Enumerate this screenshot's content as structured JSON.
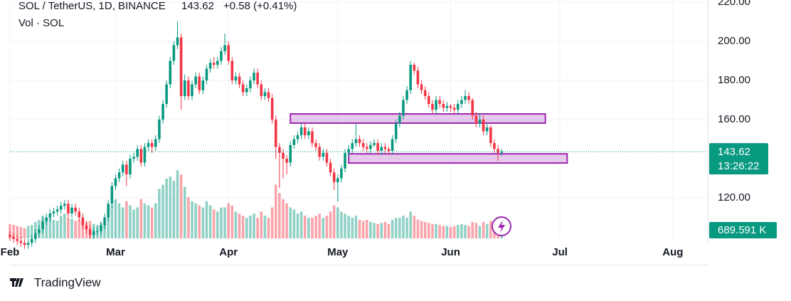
{
  "chart_data": {
    "type": "candlestick",
    "title": "SOL / TetherUS, 1D, BINANCE",
    "last_price": 143.62,
    "change_label": "+0.58 (+0.41%)",
    "countdown": "13:26:22",
    "volume_title": "Vol · SOL",
    "volume_label": "689.591 K",
    "up_color": "#089981",
    "down_color": "#f23645",
    "zone_color": "#9c27b0",
    "xlim": [
      0,
      191.6
    ],
    "xticks": [
      {
        "value": 0,
        "label": "Feb"
      },
      {
        "value": 29,
        "label": "Mar"
      },
      {
        "value": 60,
        "label": "Apr"
      },
      {
        "value": 90,
        "label": "May"
      },
      {
        "value": 121,
        "label": "Jun"
      },
      {
        "value": 151,
        "label": "Jul"
      },
      {
        "value": 182,
        "label": "Aug"
      }
    ],
    "ylim": [
      99.3,
      221.1
    ],
    "yticks": [
      {
        "value": 120,
        "label": "120.00"
      },
      {
        "value": 160,
        "label": "160.00"
      },
      {
        "value": 180,
        "label": "180.00"
      },
      {
        "value": 200,
        "label": "200.00"
      },
      {
        "value": 220,
        "label": "220.00"
      }
    ],
    "volume_ylim": [
      0,
      3450
    ],
    "zones": [
      {
        "x": [
          77,
          147
        ],
        "y": [
          158.2,
          162.9
        ]
      },
      {
        "x": [
          93,
          153
        ],
        "y": [
          137.8,
          142.5
        ]
      }
    ],
    "x": [
      0,
      1,
      2,
      3,
      4,
      5,
      6,
      7,
      8,
      9,
      10,
      11,
      12,
      13,
      14,
      15,
      16,
      17,
      18,
      19,
      20,
      21,
      22,
      23,
      24,
      25,
      26,
      27,
      28,
      29,
      30,
      31,
      32,
      33,
      34,
      35,
      36,
      37,
      38,
      39,
      40,
      41,
      42,
      43,
      44,
      45,
      46,
      47,
      48,
      49,
      50,
      51,
      52,
      53,
      54,
      55,
      56,
      57,
      58,
      59,
      60,
      61,
      62,
      63,
      64,
      65,
      66,
      67,
      68,
      69,
      70,
      71,
      72,
      73,
      74,
      75,
      76,
      77,
      78,
      79,
      80,
      81,
      82,
      83,
      84,
      85,
      86,
      87,
      88,
      89,
      90,
      91,
      92,
      93,
      94,
      95,
      96,
      97,
      98,
      99,
      100,
      101,
      102,
      103,
      104,
      105,
      106,
      107,
      108,
      109,
      110,
      111,
      112,
      113,
      114,
      115,
      116,
      117,
      118,
      119,
      120,
      121,
      122,
      123,
      124,
      125,
      126,
      127,
      128,
      129,
      130,
      131,
      132,
      133,
      134,
      135
    ],
    "ohlc": [
      [
        101,
        103,
        98,
        100
      ],
      [
        100,
        102,
        97,
        99
      ],
      [
        99,
        101,
        96,
        98
      ],
      [
        98,
        100,
        95,
        97
      ],
      [
        97,
        99,
        94,
        96
      ],
      [
        96,
        99,
        94,
        97
      ],
      [
        97,
        101,
        95,
        99
      ],
      [
        99,
        104,
        97,
        102
      ],
      [
        102,
        106,
        100,
        104
      ],
      [
        104,
        110,
        102,
        108
      ],
      [
        108,
        112,
        106,
        110
      ],
      [
        110,
        114,
        108,
        112
      ],
      [
        112,
        115,
        110,
        113
      ],
      [
        113,
        116,
        111,
        114
      ],
      [
        114,
        118,
        112,
        116
      ],
      [
        116,
        119,
        114,
        117
      ],
      [
        117,
        119,
        110,
        112
      ],
      [
        112,
        117,
        110,
        115
      ],
      [
        115,
        117,
        111,
        113
      ],
      [
        113,
        115,
        108,
        110
      ],
      [
        110,
        112,
        104,
        106
      ],
      [
        106,
        108,
        102,
        104
      ],
      [
        104,
        106,
        99,
        101
      ],
      [
        101,
        105,
        99,
        103
      ],
      [
        103,
        105,
        101,
        103
      ],
      [
        103,
        108,
        101,
        106
      ],
      [
        106,
        112,
        104,
        110
      ],
      [
        110,
        119,
        108,
        117
      ],
      [
        117,
        128,
        115,
        126
      ],
      [
        126,
        132,
        124,
        130
      ],
      [
        130,
        135,
        128,
        133
      ],
      [
        133,
        139,
        131,
        137
      ],
      [
        137,
        139,
        126,
        132
      ],
      [
        132,
        142,
        130,
        140
      ],
      [
        140,
        143,
        138,
        141
      ],
      [
        141,
        147,
        139,
        145
      ],
      [
        145,
        147,
        136,
        138
      ],
      [
        138,
        148,
        136,
        146
      ],
      [
        146,
        150,
        144,
        148
      ],
      [
        148,
        150,
        143,
        146
      ],
      [
        146,
        152,
        144,
        150
      ],
      [
        150,
        162,
        148,
        160
      ],
      [
        160,
        170,
        158,
        168
      ],
      [
        168,
        180,
        166,
        178
      ],
      [
        178,
        192,
        176,
        190
      ],
      [
        190,
        200,
        188,
        198
      ],
      [
        198,
        210,
        196,
        202
      ],
      [
        202,
        204,
        165,
        172
      ],
      [
        172,
        183,
        170,
        180
      ],
      [
        180,
        182,
        170,
        172
      ],
      [
        172,
        180,
        170,
        178
      ],
      [
        178,
        184,
        176,
        182
      ],
      [
        182,
        184,
        173,
        175
      ],
      [
        175,
        182,
        173,
        180
      ],
      [
        180,
        188,
        178,
        186
      ],
      [
        186,
        191,
        184,
        189
      ],
      [
        189,
        192,
        186,
        188
      ],
      [
        188,
        192,
        186,
        190
      ],
      [
        190,
        197,
        188,
        195
      ],
      [
        195,
        204,
        193,
        198
      ],
      [
        198,
        200,
        188,
        190
      ],
      [
        190,
        192,
        178,
        180
      ],
      [
        180,
        184,
        178,
        182
      ],
      [
        182,
        184,
        176,
        178
      ],
      [
        178,
        180,
        172,
        174
      ],
      [
        174,
        178,
        172,
        176
      ],
      [
        176,
        182,
        174,
        180
      ],
      [
        180,
        186,
        178,
        184
      ],
      [
        184,
        186,
        176,
        178
      ],
      [
        178,
        180,
        170,
        172
      ],
      [
        172,
        176,
        170,
        174
      ],
      [
        174,
        176,
        169,
        171
      ],
      [
        171,
        173,
        158,
        160
      ],
      [
        160,
        162,
        140,
        146
      ],
      [
        146,
        148,
        125,
        143
      ],
      [
        143,
        145,
        130,
        140
      ],
      [
        140,
        142,
        132,
        138
      ],
      [
        138,
        149,
        136,
        147
      ],
      [
        147,
        152,
        145,
        150
      ],
      [
        150,
        154,
        148,
        152
      ],
      [
        152,
        158,
        150,
        156
      ],
      [
        156,
        158,
        150,
        152
      ],
      [
        152,
        156,
        150,
        154
      ],
      [
        154,
        156,
        146,
        148
      ],
      [
        148,
        150,
        144,
        146
      ],
      [
        146,
        148,
        139,
        141
      ],
      [
        141,
        145,
        139,
        143
      ],
      [
        143,
        145,
        136,
        138
      ],
      [
        138,
        140,
        131,
        133
      ],
      [
        133,
        135,
        124,
        128
      ],
      [
        128,
        132,
        118,
        130
      ],
      [
        130,
        137,
        128,
        135
      ],
      [
        135,
        145,
        133,
        143
      ],
      [
        143,
        147,
        141,
        145
      ],
      [
        145,
        150,
        143,
        148
      ],
      [
        148,
        158,
        146,
        150
      ],
      [
        150,
        152,
        146,
        148
      ],
      [
        148,
        150,
        144,
        146
      ],
      [
        146,
        148,
        143,
        145
      ],
      [
        145,
        149,
        143,
        147
      ],
      [
        147,
        150,
        146,
        148
      ],
      [
        148,
        150,
        142,
        144
      ],
      [
        144,
        148,
        142,
        146
      ],
      [
        146,
        148,
        143,
        145
      ],
      [
        145,
        146,
        142,
        144
      ],
      [
        144,
        152,
        142,
        150
      ],
      [
        150,
        160,
        148,
        158
      ],
      [
        158,
        164,
        156,
        162
      ],
      [
        162,
        172,
        160,
        170
      ],
      [
        170,
        177,
        168,
        175
      ],
      [
        175,
        190,
        173,
        188
      ],
      [
        188,
        189,
        183,
        185
      ],
      [
        185,
        187,
        176,
        178
      ],
      [
        178,
        180,
        173,
        175
      ],
      [
        175,
        177,
        170,
        172
      ],
      [
        172,
        174,
        166,
        168
      ],
      [
        168,
        170,
        163,
        165
      ],
      [
        165,
        172,
        163,
        170
      ],
      [
        170,
        172,
        166,
        168
      ],
      [
        168,
        170,
        164,
        166
      ],
      [
        166,
        169,
        164,
        167
      ],
      [
        167,
        168,
        164,
        166
      ],
      [
        166,
        168,
        163,
        165
      ],
      [
        165,
        170,
        163,
        168
      ],
      [
        168,
        172,
        166,
        170
      ],
      [
        170,
        175,
        168,
        172
      ],
      [
        172,
        174,
        168,
        170
      ],
      [
        170,
        171,
        160,
        162
      ],
      [
        162,
        164,
        156,
        158
      ],
      [
        158,
        163,
        156,
        160
      ],
      [
        160,
        162,
        152,
        154
      ],
      [
        154,
        158,
        152,
        156
      ],
      [
        156,
        157,
        146,
        148
      ],
      [
        148,
        150,
        143,
        145
      ],
      [
        145,
        147,
        139,
        143.04
      ],
      [
        143.04,
        145,
        141.5,
        143.62
      ]
    ],
    "volume": [
      700,
      650,
      600,
      550,
      500,
      600,
      650,
      800,
      900,
      1100,
      1000,
      1050,
      900,
      850,
      1100,
      1200,
      1000,
      950,
      850,
      900,
      950,
      800,
      850,
      700,
      650,
      750,
      900,
      1200,
      1600,
      1900,
      1700,
      1500,
      1800,
      1600,
      1400,
      1500,
      1900,
      1700,
      1600,
      1500,
      1700,
      2400,
      2600,
      2900,
      3000,
      2800,
      3300,
      3100,
      2500,
      2000,
      1800,
      1700,
      1600,
      1500,
      1800,
      1600,
      1400,
      1300,
      1500,
      1500,
      1700,
      1600,
      1300,
      1200,
      1100,
      1000,
      1100,
      1200,
      1000,
      1300,
      1100,
      1000,
      1500,
      2600,
      2200,
      1900,
      1700,
      1500,
      1400,
      1200,
      1300,
      1100,
      1000,
      1000,
      1100,
      1200,
      1000,
      1100,
      1300,
      1600,
      1500,
      1300,
      1200,
      1100,
      1000,
      1100,
      900,
      850,
      900,
      800,
      750,
      700,
      750,
      800,
      700,
      900,
      1000,
      1000,
      1100,
      1000,
      1300,
      1100,
      900,
      850,
      800,
      750,
      700,
      700,
      650,
      600,
      600,
      550,
      600,
      650,
      700,
      650,
      600,
      800,
      750,
      600,
      800,
      700,
      850,
      750,
      800,
      689.591
    ]
  },
  "brand": "TradingView"
}
